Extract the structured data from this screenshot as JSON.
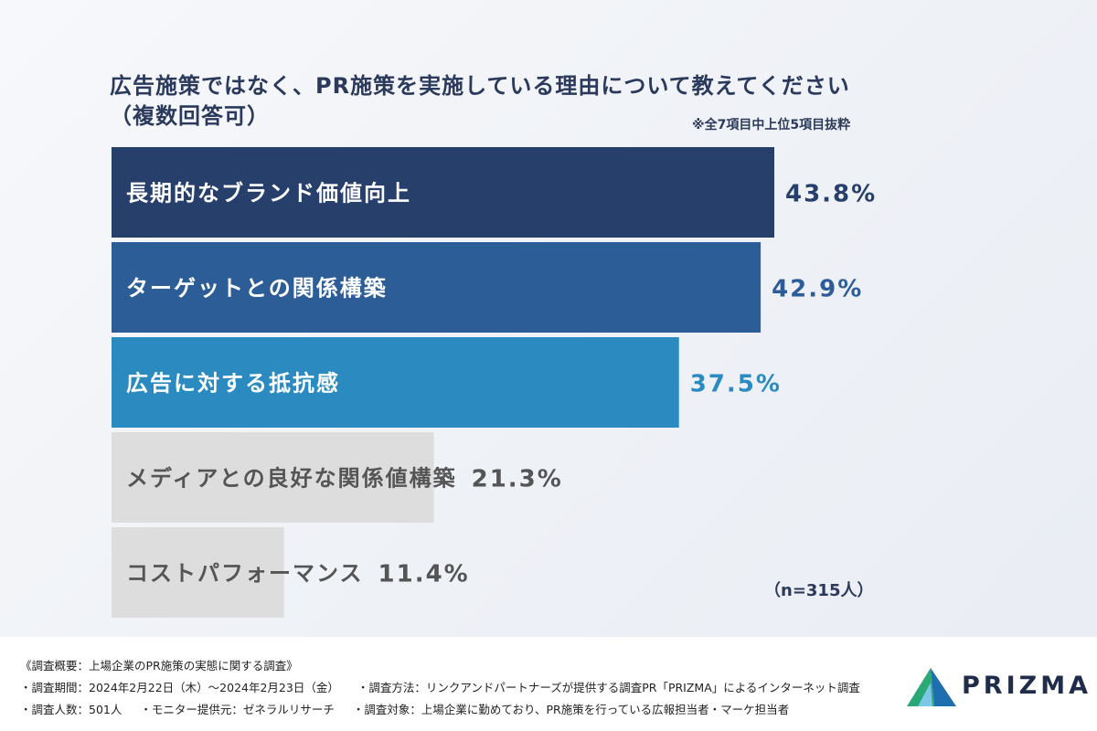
{
  "title_line1": "広告施策ではなく、PR施策を実施している理由について教えてください",
  "title_line2": "（複数回答可）",
  "note": "※全7項目中上位5項目抜粋",
  "sample": "（n=315人）",
  "chart_data": {
    "type": "bar",
    "orientation": "horizontal",
    "categories": [
      "長期的なブランド価値向上",
      "ターゲットとの関係構築",
      "広告に対する抵抗感",
      "メディアとの良好な関係値構築",
      "コストパフォーマンス"
    ],
    "values": [
      43.8,
      42.9,
      37.5,
      21.3,
      11.4
    ],
    "value_labels": [
      "43.8%",
      "42.9%",
      "37.5%",
      "21.3%",
      "11.4%"
    ],
    "unit": "%",
    "colors": [
      "#263f6b",
      "#2d5d97",
      "#2b8bc0",
      "#dddddd",
      "#dddddd"
    ],
    "label_colors": [
      "#ffffff",
      "#ffffff",
      "#ffffff",
      "#555555",
      "#555555"
    ],
    "value_colors": [
      "#263f6b",
      "#2d5d97",
      "#2b8bc0",
      "#555555",
      "#555555"
    ],
    "xlim": [
      0,
      43.8
    ],
    "grid": false
  },
  "footer": {
    "line1": "《調査概要：上場企業のPR施策の実態に関する調査》",
    "line2a": "・調査期間：2024年2月22日（木）〜2024年2月23日（金）",
    "line2b": "・調査方法：リンクアンドパートナーズが提供する調査PR「PRIZMA」によるインターネット調査",
    "line3a": "・調査人数：501人",
    "line3b": "・モニター提供元：ゼネラルリサーチ",
    "line3c": "・調査対象：上場企業に勤めており、PR施策を行っている広報担当者・マーケ担当者"
  },
  "logo": {
    "text": "PRIZMA",
    "icon": "prism-triangle-icon",
    "colors": [
      "#2aa876",
      "#1f6fb0",
      "#7cc7e8"
    ]
  }
}
